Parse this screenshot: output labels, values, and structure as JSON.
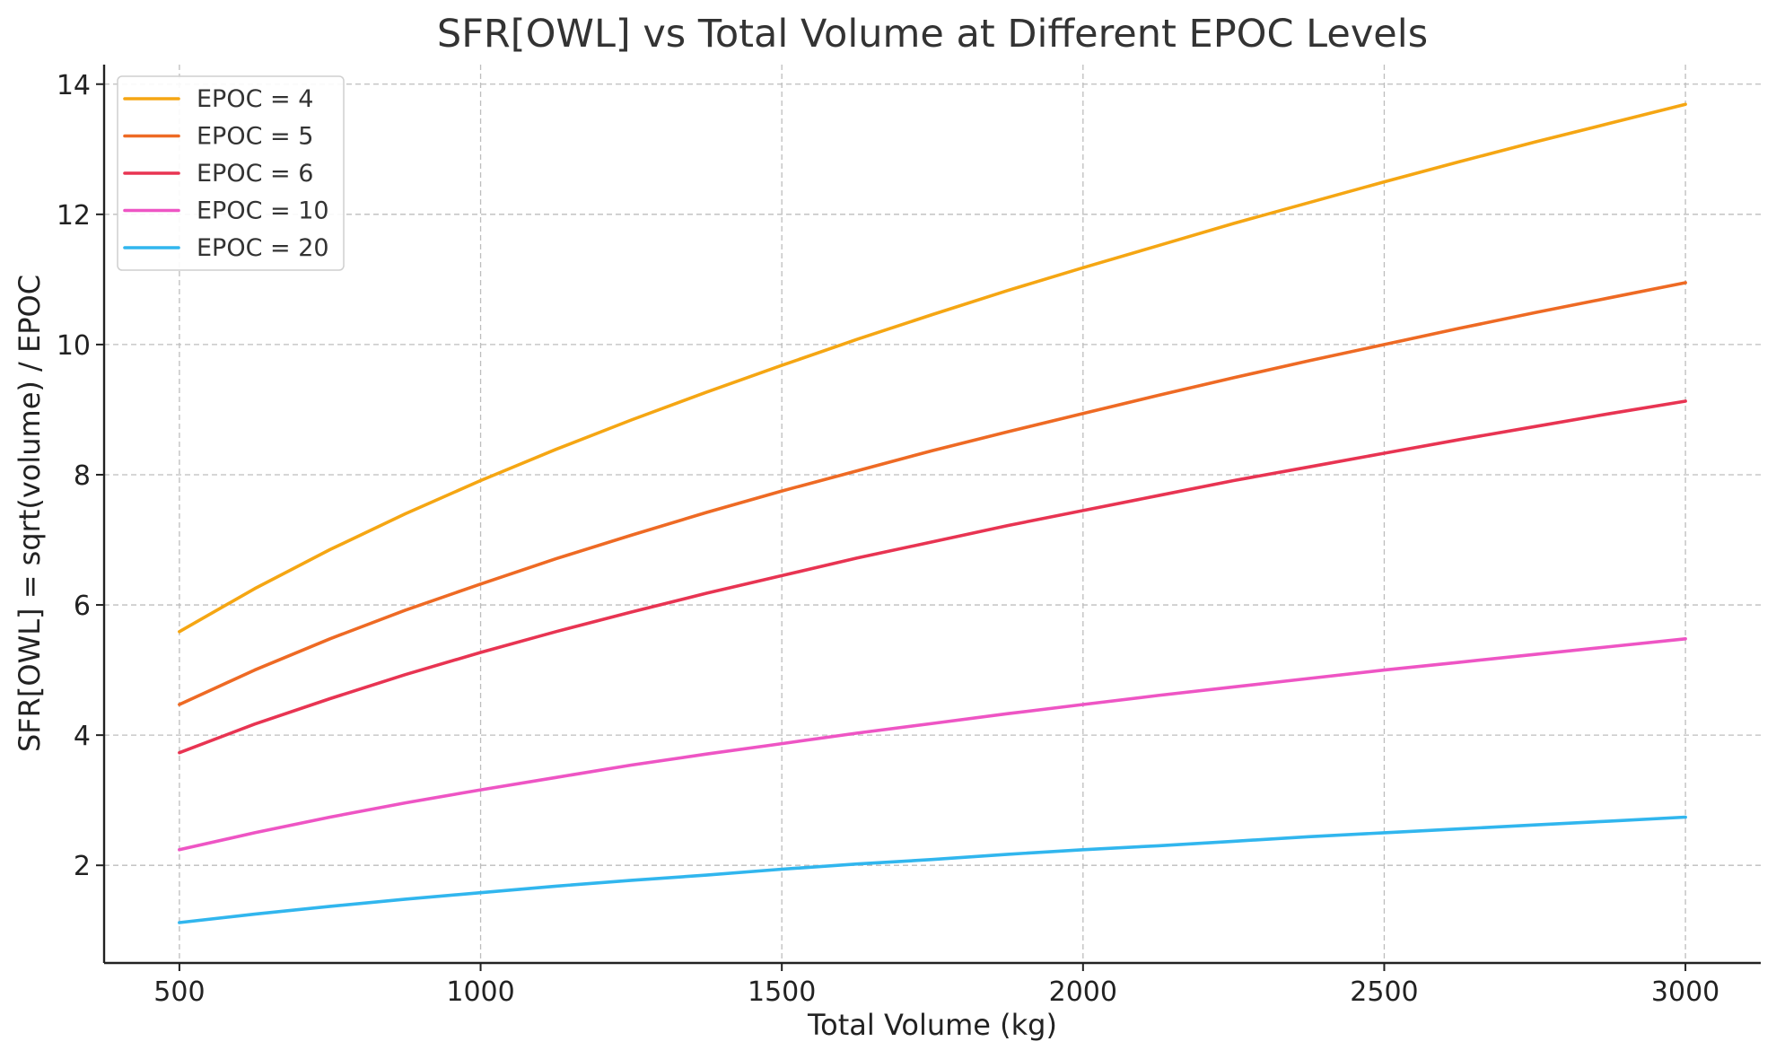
{
  "chart_data": {
    "type": "line",
    "title": "SFR[OWL] vs Total Volume at Different EPOC Levels",
    "xlabel": "Total Volume (kg)",
    "ylabel": "SFR[OWL] = sqrt(volume) / EPOC",
    "xlim": [
      375,
      3125
    ],
    "ylim": [
      0.5,
      14.3
    ],
    "x_ticks": [
      500,
      1000,
      1500,
      2000,
      2500,
      3000
    ],
    "y_ticks": [
      2,
      4,
      6,
      8,
      10,
      12,
      14
    ],
    "grid": true,
    "legend_position": "top-left",
    "x": [
      500,
      625,
      750,
      875,
      1000,
      1125,
      1250,
      1375,
      1500,
      1625,
      1750,
      1875,
      2000,
      2125,
      2250,
      2375,
      2500,
      2625,
      2750,
      2875,
      3000
    ],
    "series": [
      {
        "name": "EPOC = 4",
        "color": "#f5a613",
        "values": [
          5.59,
          6.25,
          6.85,
          7.4,
          7.91,
          8.39,
          8.84,
          9.27,
          9.68,
          10.08,
          10.46,
          10.83,
          11.18,
          11.52,
          11.86,
          12.18,
          12.5,
          12.81,
          13.11,
          13.4,
          13.69
        ]
      },
      {
        "name": "EPOC = 5",
        "color": "#ee6a24",
        "values": [
          4.47,
          5.0,
          5.48,
          5.92,
          6.32,
          6.71,
          7.07,
          7.42,
          7.75,
          8.06,
          8.37,
          8.66,
          8.94,
          9.22,
          9.49,
          9.75,
          10.0,
          10.25,
          10.49,
          10.72,
          10.95
        ]
      },
      {
        "name": "EPOC = 6",
        "color": "#e83452",
        "values": [
          3.73,
          4.17,
          4.56,
          4.93,
          5.27,
          5.59,
          5.89,
          6.18,
          6.45,
          6.72,
          6.97,
          7.22,
          7.45,
          7.68,
          7.91,
          8.12,
          8.33,
          8.54,
          8.74,
          8.94,
          9.13
        ]
      },
      {
        "name": "EPOC = 10",
        "color": "#ee55c4",
        "values": [
          2.24,
          2.5,
          2.74,
          2.96,
          3.16,
          3.35,
          3.54,
          3.71,
          3.87,
          4.03,
          4.18,
          4.33,
          4.47,
          4.61,
          4.74,
          4.87,
          5.0,
          5.12,
          5.24,
          5.36,
          5.48
        ]
      },
      {
        "name": "EPOC = 20",
        "color": "#31b6ee",
        "values": [
          1.12,
          1.25,
          1.37,
          1.48,
          1.58,
          1.68,
          1.77,
          1.85,
          1.94,
          2.02,
          2.09,
          2.17,
          2.24,
          2.3,
          2.37,
          2.44,
          2.5,
          2.56,
          2.62,
          2.68,
          2.74
        ]
      }
    ]
  }
}
